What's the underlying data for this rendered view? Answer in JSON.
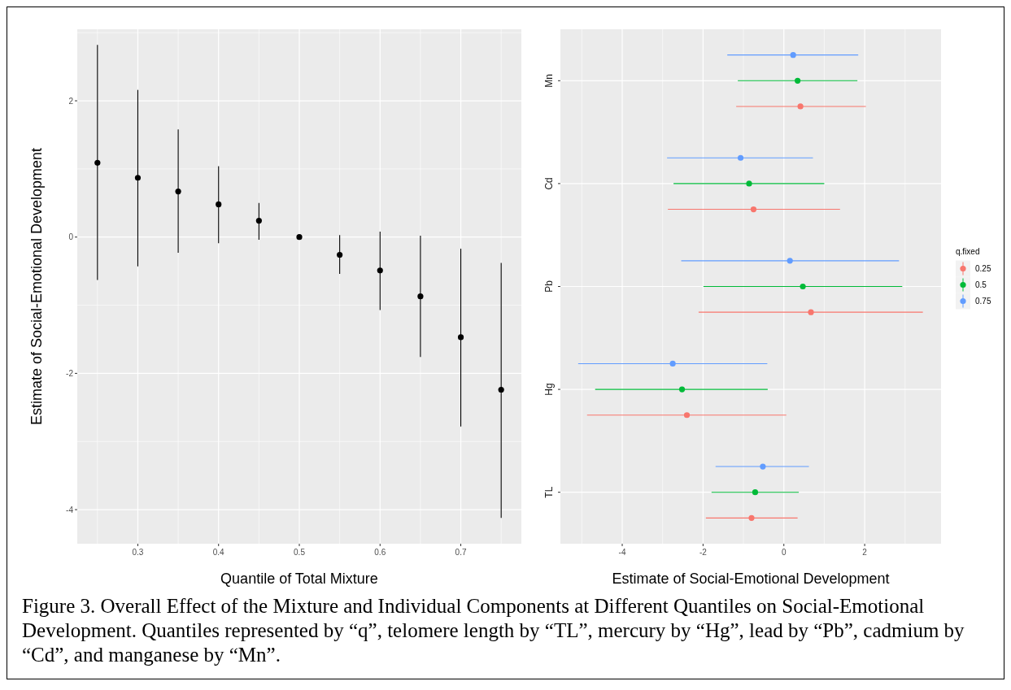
{
  "chart_data": [
    {
      "type": "scatter",
      "xlabel": "Quantile of Total Mixture",
      "ylabel": "Estimate of Social-Emotional Development",
      "x": [
        0.25,
        0.3,
        0.35,
        0.4,
        0.45,
        0.5,
        0.55,
        0.6,
        0.65,
        0.7,
        0.75
      ],
      "values": [
        1.09,
        0.87,
        0.67,
        0.48,
        0.24,
        0,
        -0.26,
        -0.49,
        -0.87,
        -1.47,
        -2.24
      ],
      "errors": [
        [
          -0.63,
          2.82
        ],
        [
          -0.43,
          2.16
        ],
        [
          -0.23,
          1.58
        ],
        [
          -0.09,
          1.04
        ],
        [
          -0.04,
          0.5
        ],
        null,
        [
          -0.54,
          0.03
        ],
        [
          -1.07,
          0.08
        ],
        [
          -1.76,
          0.02
        ],
        [
          -2.78,
          -0.17
        ],
        [
          -4.12,
          -0.38
        ]
      ],
      "color": "#000000",
      "xlim": [
        0.225,
        0.775
      ],
      "ylim": [
        -4.5,
        3.05
      ],
      "xticks": [
        0.3,
        0.4,
        0.5,
        0.6,
        0.7
      ],
      "yticks": [
        -4,
        -2,
        0,
        2
      ],
      "grid": true,
      "marker": "circle",
      "annotations": [
        "Figure 3. Overall Effect of the Mixture and Individual Components at Different Quantiles on Social-Emotional Development. Quantiles represented by “q”, telomere length by “TL”, mercury by “Hg”, lead by “Pb”, cadmium by “Cd”, and manganese by “Mn”."
      ]
    },
    {
      "type": "scatter",
      "orientation": "horizontal",
      "xlabel": "Estimate of Social-Emotional Development",
      "categories": [
        "Mn",
        "Cd",
        "Pb",
        "Hg",
        "TL"
      ],
      "legend_title": "q.fixed",
      "legend": "right",
      "grid": true,
      "marker": "circle",
      "xlim": [
        -5.53,
        3.89
      ],
      "xticks": [
        -4,
        -2,
        0,
        2
      ],
      "series": [
        {
          "name": "0.25",
          "color": "#f8766d",
          "values": [
            0.41,
            -0.75,
            0.67,
            -2.4,
            -0.8
          ],
          "errors": [
            [
              -1.18,
              2.03
            ],
            [
              -2.87,
              1.39
            ],
            [
              -2.11,
              3.44
            ],
            [
              -4.87,
              0.06
            ],
            [
              -1.93,
              0.34
            ]
          ]
        },
        {
          "name": "0.5",
          "color": "#00ba38",
          "values": [
            0.34,
            -0.86,
            0.47,
            -2.52,
            -0.71
          ],
          "errors": [
            [
              -1.14,
              1.82
            ],
            [
              -2.73,
              1.0
            ],
            [
              -1.99,
              2.93
            ],
            [
              -4.67,
              -0.4
            ],
            [
              -1.79,
              0.37
            ]
          ]
        },
        {
          "name": "0.75",
          "color": "#619cff",
          "values": [
            0.23,
            -1.07,
            0.15,
            -2.75,
            -0.52
          ],
          "errors": [
            [
              -1.4,
              1.84
            ],
            [
              -2.89,
              0.72
            ],
            [
              -2.54,
              2.85
            ],
            [
              -5.09,
              -0.41
            ],
            [
              -1.69,
              0.62
            ]
          ]
        }
      ]
    }
  ]
}
